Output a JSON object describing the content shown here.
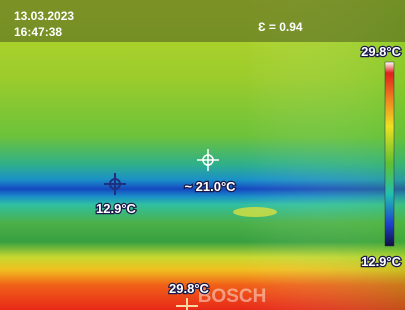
{
  "header": {
    "date": "13.03.2023",
    "time": "16:47:38",
    "emissivity": "Ɛ = 0.94"
  },
  "scale": {
    "max": "29.8°C",
    "min": "12.9°C"
  },
  "markers": [
    {
      "label": "~ 21.0°C"
    },
    {
      "label": "12.9°C"
    },
    {
      "label": "29.8°C"
    }
  ],
  "watermark": "BOSCH"
}
